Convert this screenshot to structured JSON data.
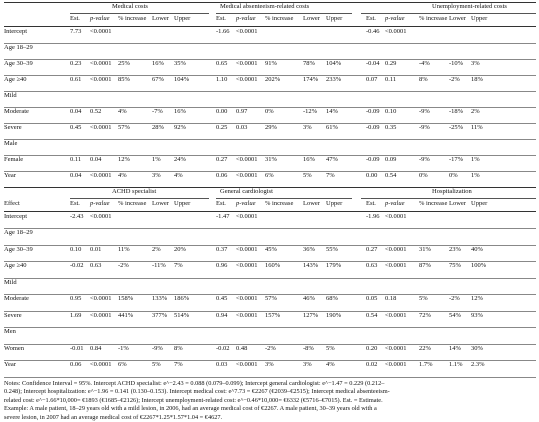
{
  "table1": {
    "groups": [
      "Medical costs",
      "Medical absenteeism-related costs",
      "Unemployment-related costs"
    ],
    "columns": [
      "Est.",
      "p-value",
      "% increase",
      "Lower",
      "Upper"
    ],
    "rows": [
      [
        "Intercept",
        "7.73",
        "<0.0001",
        "",
        "",
        "",
        "-1.66",
        "<0.0001",
        "",
        "",
        "",
        "-0.46",
        "<0.0001",
        "",
        "",
        ""
      ],
      [
        "Age 18–29",
        "",
        "",
        "",
        "",
        "",
        "",
        "",
        "",
        "",
        "",
        "",
        "",
        "",
        "",
        ""
      ],
      [
        "Age 30–39",
        "0.23",
        "<0.0001",
        "25%",
        "16%",
        "35%",
        "0.65",
        "<0.0001",
        "91%",
        "78%",
        "104%",
        "-0.04",
        "0.29",
        "-4%",
        "-10%",
        "3%"
      ],
      [
        "Age ≥40",
        "0.61",
        "<0.0001",
        "85%",
        "67%",
        "104%",
        "1.10",
        "<0.0001",
        "202%",
        "174%",
        "233%",
        "0.07",
        "0.11",
        "8%",
        "-2%",
        "18%"
      ],
      [
        "Mild",
        "",
        "",
        "",
        "",
        "",
        "",
        "",
        "",
        "",
        "",
        "",
        "",
        "",
        "",
        ""
      ],
      [
        "Moderate",
        "0.04",
        "0.52",
        "4%",
        "-7%",
        "16%",
        "0.00",
        "0.97",
        "0%",
        "-12%",
        "14%",
        "-0.09",
        "0.10",
        "-9%",
        "-18%",
        "2%"
      ],
      [
        "Severe",
        "0.45",
        "<0.0001",
        "57%",
        "28%",
        "92%",
        "0.25",
        "0.03",
        "29%",
        "3%",
        "61%",
        "-0.09",
        "0.35",
        "-9%",
        "-25%",
        "11%"
      ],
      [
        "Male",
        "",
        "",
        "",
        "",
        "",
        "",
        "",
        "",
        "",
        "",
        "",
        "",
        "",
        "",
        ""
      ],
      [
        "Female",
        "0.11",
        "0.04",
        "12%",
        "1%",
        "24%",
        "0.27",
        "<0.0001",
        "31%",
        "16%",
        "47%",
        "-0.09",
        "0.09",
        "-9%",
        "-17%",
        "1%"
      ],
      [
        "Year",
        "0.04",
        "<0.0001",
        "4%",
        "3%",
        "4%",
        "0.06",
        "<0.0001",
        "6%",
        "5%",
        "7%",
        "0.00",
        "0.54",
        "0%",
        "0%",
        "1%"
      ]
    ]
  },
  "table2": {
    "effect_label": "Effect",
    "groups": [
      "ACHD specialist",
      "General cardiologist",
      "Hospitalization"
    ],
    "columns": [
      "Est.",
      "p-value",
      "% increase",
      "Lower",
      "Upper"
    ],
    "rows": [
      [
        "Intercept",
        "-2.43",
        "<0.0001",
        "",
        "",
        "",
        "-1.47",
        "<0.0001",
        "",
        "",
        "",
        "-1.96",
        "<0.0001",
        "",
        "",
        ""
      ],
      [
        "Age 18–29",
        "",
        "",
        "",
        "",
        "",
        "",
        "",
        "",
        "",
        "",
        "",
        "",
        "",
        "",
        ""
      ],
      [
        "Age 30–39",
        "0.10",
        "0.01",
        "11%",
        "2%",
        "20%",
        "0.37",
        "<0.0001",
        "45%",
        "36%",
        "55%",
        "0.27",
        "<0.0001",
        "31%",
        "23%",
        "40%"
      ],
      [
        "Age ≥40",
        "-0.02",
        "0.63",
        "-2%",
        "-11%",
        "7%",
        "0.96",
        "<0.0001",
        "160%",
        "143%",
        "179%",
        "0.63",
        "<0.0001",
        "87%",
        "75%",
        "100%"
      ],
      [
        "Mild",
        "",
        "",
        "",
        "",
        "",
        "",
        "",
        "",
        "",
        "",
        "",
        "",
        "",
        "",
        ""
      ],
      [
        "Moderate",
        "0.95",
        "<0.0001",
        "158%",
        "133%",
        "186%",
        "0.45",
        "<0.0001",
        "57%",
        "46%",
        "68%",
        "0.05",
        "0.18",
        "5%",
        "-2%",
        "12%"
      ],
      [
        "Severe",
        "1.69",
        "<0.0001",
        "441%",
        "377%",
        "514%",
        "0.94",
        "<0.0001",
        "157%",
        "127%",
        "190%",
        "0.54",
        "<0.0001",
        "72%",
        "54%",
        "93%"
      ],
      [
        "Men",
        "",
        "",
        "",
        "",
        "",
        "",
        "",
        "",
        "",
        "",
        "",
        "",
        "",
        "",
        ""
      ],
      [
        "Women",
        "-0.01",
        "0.84",
        "-1%",
        "-9%",
        "8%",
        "-0.02",
        "0.48",
        "-2%",
        "-8%",
        "5%",
        "0.20",
        "<0.0001",
        "22%",
        "14%",
        "30%"
      ],
      [
        "Year",
        "0.06",
        "<0.0001",
        "6%",
        "5%",
        "7%",
        "0.03",
        "<0.0001",
        "3%",
        "3%",
        "4%",
        "0.02",
        "<0.0001",
        "1.7%",
        "1.1%",
        "2.3%"
      ]
    ]
  },
  "notes": {
    "line1": "Notes: Confidence Interval = 95%. Intercept ACHD specialist: e^−2.43 = 0.088 (0.079–0.099); Intercept general cardiologist: e^−1.47 = 0.229 (0.212–",
    "line2": "0.248); Intercept hospitalization: e^−1.96 = 0.141 (0.130–0.153). Intercept medical cost: e^7.73 = €2267 (€2039–€2515); Intercept medical absenteeism-",
    "line3": "related cost: e^−1.66*10,000= €1893 (€1685–€2126); Intercept unemployment-related cost: e^−0.46*10,000= €6332 (€5716–€7015). Est. = Estimate.",
    "line4": "Example: A male patient, 18–29 years old with a mild lesion, in 2006, had an average medical cost of €2267. A male patient, 30–39 years old with a",
    "line5": "severe lesion, in 2007 had an average medical cost of €2267*1.25*1.57*1.04 = €4627."
  }
}
